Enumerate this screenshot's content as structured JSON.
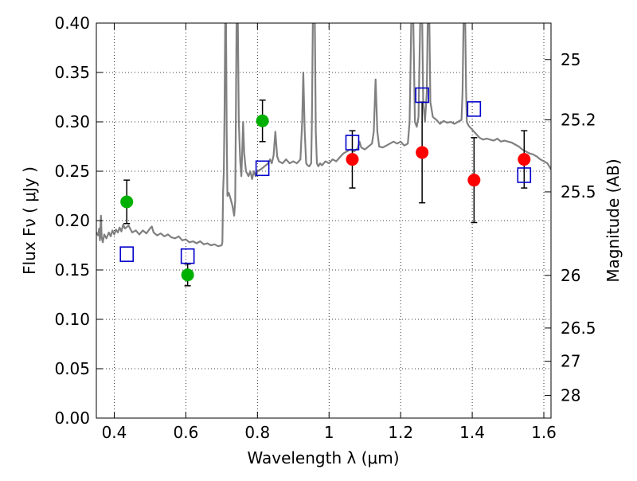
{
  "chart_data": {
    "type": "scatter",
    "xlabel": "Wavelength  λ (μm)",
    "ylabel": "Flux  Fν  ( μJy )",
    "y2label": "Magnitude (AB)",
    "xlim": [
      0.35,
      1.62
    ],
    "ylim": [
      0.0,
      0.4
    ],
    "grid": true,
    "x_ticks": [
      {
        "v": 0.4,
        "label": "0.4"
      },
      {
        "v": 0.6,
        "label": "0.6"
      },
      {
        "v": 0.8,
        "label": "0.8"
      },
      {
        "v": 1.0,
        "label": "1"
      },
      {
        "v": 1.2,
        "label": "1.2"
      },
      {
        "v": 1.4,
        "label": "1.4"
      },
      {
        "v": 1.6,
        "label": "1.6"
      }
    ],
    "y_ticks": [
      {
        "v": 0.0,
        "label": "0.00"
      },
      {
        "v": 0.05,
        "label": "0.05"
      },
      {
        "v": 0.1,
        "label": "0.10"
      },
      {
        "v": 0.15,
        "label": "0.15"
      },
      {
        "v": 0.2,
        "label": "0.20"
      },
      {
        "v": 0.25,
        "label": "0.25"
      },
      {
        "v": 0.3,
        "label": "0.30"
      },
      {
        "v": 0.35,
        "label": "0.35"
      },
      {
        "v": 0.4,
        "label": "0.40"
      }
    ],
    "y2_ticks": [
      {
        "mag": 25,
        "label": "25"
      },
      {
        "mag": 25.2,
        "label": "25.2"
      },
      {
        "mag": 25.5,
        "label": "25.5"
      },
      {
        "mag": 26,
        "label": "26"
      },
      {
        "mag": 26.5,
        "label": "26.5"
      },
      {
        "mag": 27,
        "label": "27"
      },
      {
        "mag": 28,
        "label": "28"
      }
    ],
    "colors": {
      "spectrum": "#808080",
      "green_points": "#00b000",
      "red_points": "#ff0000",
      "model_squares": "#0000cc",
      "error_bars": "#000000"
    },
    "series": [
      {
        "kind": "line",
        "points": [
          [
            0.35,
            0.188
          ],
          [
            0.355,
            0.185
          ],
          [
            0.358,
            0.192
          ],
          [
            0.36,
            0.18
          ],
          [
            0.363,
            0.205
          ],
          [
            0.365,
            0.183
          ],
          [
            0.368,
            0.178
          ],
          [
            0.372,
            0.186
          ],
          [
            0.378,
            0.182
          ],
          [
            0.385,
            0.188
          ],
          [
            0.39,
            0.184
          ],
          [
            0.395,
            0.19
          ],
          [
            0.4,
            0.186
          ],
          [
            0.405,
            0.191
          ],
          [
            0.41,
            0.188
          ],
          [
            0.415,
            0.193
          ],
          [
            0.42,
            0.189
          ],
          [
            0.425,
            0.196
          ],
          [
            0.43,
            0.192
          ],
          [
            0.44,
            0.195
          ],
          [
            0.45,
            0.188
          ],
          [
            0.46,
            0.19
          ],
          [
            0.47,
            0.186
          ],
          [
            0.48,
            0.19
          ],
          [
            0.49,
            0.187
          ],
          [
            0.5,
            0.192
          ],
          [
            0.505,
            0.194
          ],
          [
            0.51,
            0.188
          ],
          [
            0.52,
            0.185
          ],
          [
            0.53,
            0.187
          ],
          [
            0.54,
            0.184
          ],
          [
            0.55,
            0.186
          ],
          [
            0.56,
            0.183
          ],
          [
            0.57,
            0.182
          ],
          [
            0.58,
            0.184
          ],
          [
            0.59,
            0.18
          ],
          [
            0.6,
            0.181
          ],
          [
            0.61,
            0.178
          ],
          [
            0.62,
            0.179
          ],
          [
            0.63,
            0.177
          ],
          [
            0.64,
            0.179
          ],
          [
            0.65,
            0.176
          ],
          [
            0.66,
            0.177
          ],
          [
            0.67,
            0.175
          ],
          [
            0.68,
            0.176
          ],
          [
            0.69,
            0.174
          ],
          [
            0.7,
            0.175
          ],
          [
            0.702,
            0.178
          ],
          [
            0.704,
            0.23
          ],
          [
            0.706,
            0.25
          ],
          [
            0.708,
            0.31
          ],
          [
            0.71,
            0.41
          ],
          [
            0.712,
            0.41
          ],
          [
            0.714,
            0.29
          ],
          [
            0.716,
            0.225
          ],
          [
            0.72,
            0.228
          ],
          [
            0.725,
            0.222
          ],
          [
            0.73,
            0.215
          ],
          [
            0.735,
            0.205
          ],
          [
            0.738,
            0.22
          ],
          [
            0.742,
            0.41
          ],
          [
            0.745,
            0.41
          ],
          [
            0.748,
            0.3
          ],
          [
            0.752,
            0.26
          ],
          [
            0.755,
            0.245
          ],
          [
            0.758,
            0.275
          ],
          [
            0.76,
            0.3
          ],
          [
            0.763,
            0.268
          ],
          [
            0.768,
            0.25
          ],
          [
            0.775,
            0.245
          ],
          [
            0.78,
            0.25
          ],
          [
            0.785,
            0.242
          ],
          [
            0.79,
            0.25
          ],
          [
            0.795,
            0.245
          ],
          [
            0.8,
            0.25
          ],
          [
            0.81,
            0.252
          ],
          [
            0.82,
            0.255
          ],
          [
            0.83,
            0.258
          ],
          [
            0.835,
            0.262
          ],
          [
            0.84,
            0.258
          ],
          [
            0.845,
            0.266
          ],
          [
            0.85,
            0.29
          ],
          [
            0.855,
            0.265
          ],
          [
            0.86,
            0.26
          ],
          [
            0.87,
            0.258
          ],
          [
            0.88,
            0.262
          ],
          [
            0.89,
            0.258
          ],
          [
            0.9,
            0.26
          ],
          [
            0.91,
            0.258
          ],
          [
            0.92,
            0.262
          ],
          [
            0.925,
            0.3
          ],
          [
            0.928,
            0.35
          ],
          [
            0.932,
            0.29
          ],
          [
            0.936,
            0.258
          ],
          [
            0.94,
            0.256
          ],
          [
            0.945,
            0.255
          ],
          [
            0.95,
            0.258
          ],
          [
            0.952,
            0.3
          ],
          [
            0.955,
            0.41
          ],
          [
            0.96,
            0.41
          ],
          [
            0.963,
            0.29
          ],
          [
            0.966,
            0.258
          ],
          [
            0.97,
            0.255
          ],
          [
            0.975,
            0.258
          ],
          [
            0.98,
            0.256
          ],
          [
            0.99,
            0.26
          ],
          [
            1.0,
            0.258
          ],
          [
            1.01,
            0.262
          ],
          [
            1.02,
            0.26
          ],
          [
            1.03,
            0.264
          ],
          [
            1.04,
            0.268
          ],
          [
            1.05,
            0.27
          ],
          [
            1.06,
            0.272
          ],
          [
            1.07,
            0.27
          ],
          [
            1.08,
            0.273
          ],
          [
            1.085,
            0.28
          ],
          [
            1.09,
            0.274
          ],
          [
            1.1,
            0.272
          ],
          [
            1.11,
            0.275
          ],
          [
            1.12,
            0.278
          ],
          [
            1.125,
            0.29
          ],
          [
            1.13,
            0.343
          ],
          [
            1.135,
            0.29
          ],
          [
            1.14,
            0.275
          ],
          [
            1.15,
            0.274
          ],
          [
            1.16,
            0.276
          ],
          [
            1.17,
            0.278
          ],
          [
            1.18,
            0.28
          ],
          [
            1.19,
            0.278
          ],
          [
            1.2,
            0.28
          ],
          [
            1.21,
            0.276
          ],
          [
            1.22,
            0.278
          ],
          [
            1.225,
            0.3
          ],
          [
            1.23,
            0.41
          ],
          [
            1.235,
            0.41
          ],
          [
            1.24,
            0.3
          ],
          [
            1.245,
            0.295
          ],
          [
            1.25,
            0.305
          ],
          [
            1.255,
            0.41
          ],
          [
            1.26,
            0.41
          ],
          [
            1.263,
            0.32
          ],
          [
            1.268,
            0.3
          ],
          [
            1.273,
            0.33
          ],
          [
            1.276,
            0.41
          ],
          [
            1.28,
            0.41
          ],
          [
            1.283,
            0.32
          ],
          [
            1.29,
            0.305
          ],
          [
            1.3,
            0.302
          ],
          [
            1.31,
            0.298
          ],
          [
            1.32,
            0.301
          ],
          [
            1.33,
            0.299
          ],
          [
            1.34,
            0.3
          ],
          [
            1.35,
            0.298
          ],
          [
            1.36,
            0.3
          ],
          [
            1.37,
            0.302
          ],
          [
            1.373,
            0.33
          ],
          [
            1.376,
            0.41
          ],
          [
            1.38,
            0.41
          ],
          [
            1.383,
            0.33
          ],
          [
            1.385,
            0.3
          ],
          [
            1.39,
            0.296
          ],
          [
            1.4,
            0.292
          ],
          [
            1.41,
            0.288
          ],
          [
            1.42,
            0.284
          ],
          [
            1.43,
            0.282
          ],
          [
            1.44,
            0.283
          ],
          [
            1.45,
            0.282
          ],
          [
            1.46,
            0.281
          ],
          [
            1.47,
            0.283
          ],
          [
            1.48,
            0.28
          ],
          [
            1.49,
            0.281
          ],
          [
            1.5,
            0.28
          ],
          [
            1.51,
            0.279
          ],
          [
            1.52,
            0.277
          ],
          [
            1.53,
            0.275
          ],
          [
            1.54,
            0.272
          ],
          [
            1.55,
            0.27
          ],
          [
            1.56,
            0.268
          ],
          [
            1.57,
            0.267
          ],
          [
            1.58,
            0.265
          ],
          [
            1.59,
            0.262
          ],
          [
            1.6,
            0.26
          ],
          [
            1.61,
            0.258
          ],
          [
            1.62,
            0.252
          ]
        ]
      },
      {
        "kind": "points-with-errors",
        "points": [
          {
            "x": 0.435,
            "y": 0.219,
            "err": 0.022,
            "color": "green"
          },
          {
            "x": 0.605,
            "y": 0.145,
            "err": 0.011,
            "color": "green"
          },
          {
            "x": 0.814,
            "y": 0.301,
            "err": 0.021,
            "color": "green"
          },
          {
            "x": 1.065,
            "y": 0.262,
            "err": 0.029,
            "color": "red"
          },
          {
            "x": 1.26,
            "y": 0.269,
            "err": 0.051,
            "color": "red"
          },
          {
            "x": 1.405,
            "y": 0.241,
            "err": 0.043,
            "color": "red"
          },
          {
            "x": 1.545,
            "y": 0.262,
            "err": 0.029,
            "color": "red"
          }
        ]
      },
      {
        "kind": "squares",
        "points": [
          {
            "x": 0.435,
            "y": 0.166
          },
          {
            "x": 0.605,
            "y": 0.164
          },
          {
            "x": 0.814,
            "y": 0.253
          },
          {
            "x": 1.065,
            "y": 0.279
          },
          {
            "x": 1.26,
            "y": 0.327
          },
          {
            "x": 1.405,
            "y": 0.313
          },
          {
            "x": 1.545,
            "y": 0.246
          }
        ]
      }
    ]
  }
}
